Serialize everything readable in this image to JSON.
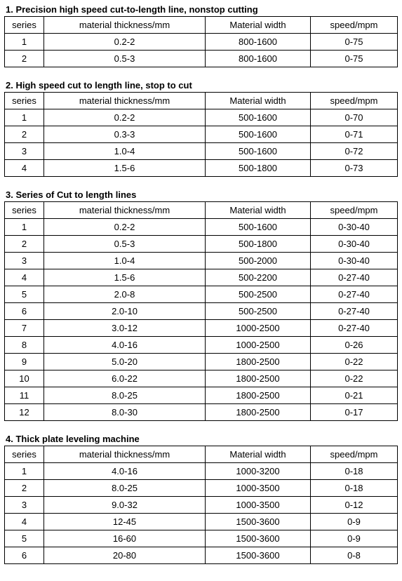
{
  "columns": [
    "series",
    "material thickness/mm",
    "Material width",
    "speed/mpm"
  ],
  "sections": [
    {
      "title": "1. Precision high speed cut-to-length line, nonstop cutting",
      "rows": [
        [
          "1",
          "0.2-2",
          "800-1600",
          "0-75"
        ],
        [
          "2",
          "0.5-3",
          "800-1600",
          "0-75"
        ]
      ]
    },
    {
      "title": "2. High speed cut to length line, stop to cut",
      "rows": [
        [
          "1",
          "0.2-2",
          "500-1600",
          "0-70"
        ],
        [
          "2",
          "0.3-3",
          "500-1600",
          "0-71"
        ],
        [
          "3",
          "1.0-4",
          "500-1600",
          "0-72"
        ],
        [
          "4",
          "1.5-6",
          "500-1800",
          "0-73"
        ]
      ]
    },
    {
      "title": "3. Series of Cut to length lines",
      "rows": [
        [
          "1",
          "0.2-2",
          "500-1600",
          "0-30-40"
        ],
        [
          "2",
          "0.5-3",
          "500-1800",
          "0-30-40"
        ],
        [
          "3",
          "1.0-4",
          "500-2000",
          "0-30-40"
        ],
        [
          "4",
          "1.5-6",
          "500-2200",
          "0-27-40"
        ],
        [
          "5",
          "2.0-8",
          "500-2500",
          "0-27-40"
        ],
        [
          "6",
          "2.0-10",
          "500-2500",
          "0-27-40"
        ],
        [
          "7",
          "3.0-12",
          "1000-2500",
          "0-27-40"
        ],
        [
          "8",
          "4.0-16",
          "1000-2500",
          "0-26"
        ],
        [
          "9",
          "5.0-20",
          "1800-2500",
          "0-22"
        ],
        [
          "10",
          "6.0-22",
          "1800-2500",
          "0-22"
        ],
        [
          "11",
          "8.0-25",
          "1800-2500",
          "0-21"
        ],
        [
          "12",
          "8.0-30",
          "1800-2500",
          "0-17"
        ]
      ]
    },
    {
      "title": "4. Thick plate leveling machine",
      "rows": [
        [
          "1",
          "4.0-16",
          "1000-3200",
          "0-18"
        ],
        [
          "2",
          "8.0-25",
          "1000-3500",
          "0-18"
        ],
        [
          "3",
          "9.0-32",
          "1000-3500",
          "0-12"
        ],
        [
          "4",
          "12-45",
          "1500-3600",
          "0-9"
        ],
        [
          "5",
          "16-60",
          "1500-3600",
          "0-9"
        ],
        [
          "6",
          "20-80",
          "1500-3600",
          "0-8"
        ]
      ]
    }
  ]
}
